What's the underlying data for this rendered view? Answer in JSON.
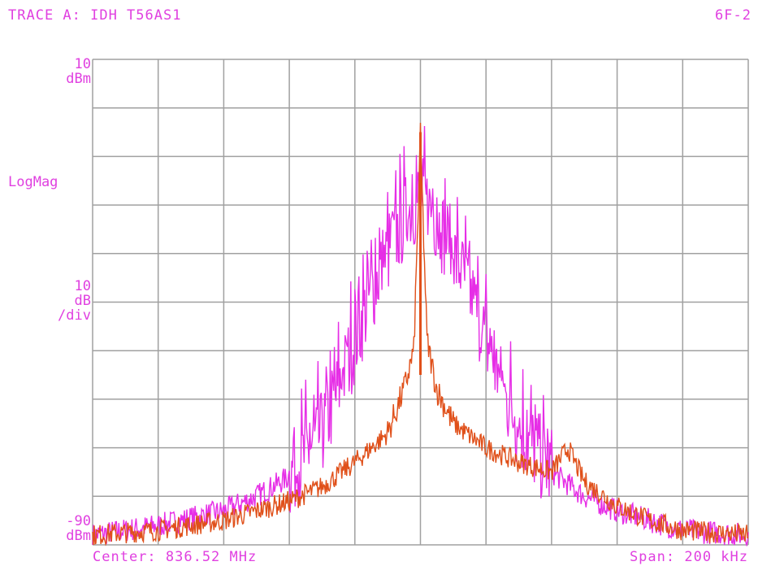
{
  "header": {
    "trace_title": "TRACE A: IDH T56AS1",
    "page_id": "6F-2"
  },
  "axis": {
    "ref_top_value": "10",
    "ref_top_unit": "dBm",
    "format": "LogMag",
    "scale_value": "10",
    "scale_unit": "dB",
    "scale_per": "/div",
    "ref_bottom_value": "-90",
    "ref_bottom_unit": "dBm",
    "center": "Center: 836.52 MHz",
    "span": "Span: 200 kHz"
  },
  "colors": {
    "grid": "#a0a0a0",
    "text": "#e040e0",
    "trace_magenta": "#e62ee6",
    "trace_orange": "#e0501a"
  },
  "chart_data": {
    "type": "line",
    "title": "TRACE A: IDH T56AS1",
    "xlabel": "Center: 836.52 MHz   Span: 200 kHz",
    "ylabel": "LogMag 10 dB/div",
    "xlim": [
      836.42,
      836.62
    ],
    "ylim": [
      -90,
      10
    ],
    "x_unit": "MHz",
    "y_unit": "dBm",
    "grid": true,
    "divisions": {
      "x": 10,
      "y": 10
    },
    "series": [
      {
        "color": "#e62ee6",
        "x": [
          836.42,
          836.44,
          836.46,
          836.47,
          836.48,
          836.49,
          836.495,
          836.5,
          836.505,
          836.51,
          836.515,
          836.52,
          836.525,
          836.53,
          836.535,
          836.54,
          836.545,
          836.55,
          836.56,
          836.57,
          836.58,
          836.59,
          836.6,
          836.62
        ],
        "y": [
          -88,
          -86,
          -83,
          -80,
          -76,
          -67,
          -58,
          -48,
          -38,
          -30,
          -23,
          -18,
          -23,
          -30,
          -38,
          -48,
          -58,
          -66,
          -75,
          -80,
          -83,
          -85,
          -87,
          -88
        ]
      },
      {
        "color": "#e0501a",
        "x": [
          836.42,
          836.44,
          836.46,
          836.47,
          836.48,
          836.49,
          836.5,
          836.51,
          836.515,
          836.518,
          836.52,
          836.522,
          836.525,
          836.53,
          836.54,
          836.55,
          836.56,
          836.565,
          836.57,
          836.58,
          836.59,
          836.6,
          836.62
        ],
        "y": [
          -88,
          -87,
          -85,
          -83,
          -81,
          -78,
          -73,
          -67,
          -58,
          -50,
          -6,
          -48,
          -58,
          -65,
          -70,
          -73,
          -75,
          -70,
          -77,
          -82,
          -85,
          -87,
          -88
        ]
      }
    ]
  }
}
